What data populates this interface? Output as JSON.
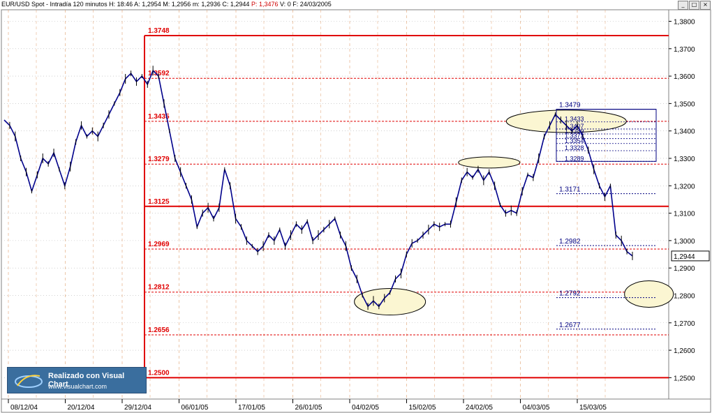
{
  "header": {
    "symbol": "EUR/USD Spot",
    "interval": "Intradía 120 minutos",
    "fields": [
      {
        "k": "H:",
        "v": "18:46"
      },
      {
        "k": "A:",
        "v": "1,2954"
      },
      {
        "k": "M:",
        "v": "1,2956"
      },
      {
        "k": "m:",
        "v": "1,2936"
      },
      {
        "k": "C:",
        "v": "1,2944"
      },
      {
        "k": "P:",
        "v": "1,3476",
        "highlight": true
      },
      {
        "k": "V:",
        "v": "0"
      },
      {
        "k": "F:",
        "v": "24/03/2005"
      }
    ]
  },
  "window_buttons": [
    "_",
    "□",
    "×"
  ],
  "watermark": {
    "title": "Realizado con Visual Chart",
    "url": "www.visualchart.com"
  },
  "colors": {
    "price": "#00008b",
    "fib_red": "#e00000",
    "fib_blue": "#000080",
    "grid": "#b4b4b4",
    "ellipse_fill": "#fbf6d2"
  },
  "chart_data": {
    "type": "line",
    "title": "",
    "ylim": [
      1.2422,
      1.3842
    ],
    "y_ticks": [
      {
        "v": 1.38,
        "label": "1,3800"
      },
      {
        "v": 1.37,
        "label": "1,3700"
      },
      {
        "v": 1.36,
        "label": "1,3600"
      },
      {
        "v": 1.35,
        "label": "1,3500"
      },
      {
        "v": 1.34,
        "label": "1,3400"
      },
      {
        "v": 1.33,
        "label": "1,3300"
      },
      {
        "v": 1.32,
        "label": "1,3200"
      },
      {
        "v": 1.31,
        "label": "1,3100"
      },
      {
        "v": 1.3,
        "label": "1,3000"
      },
      {
        "v": 1.29,
        "label": "1,2900"
      },
      {
        "v": 1.28,
        "label": "1,2800"
      },
      {
        "v": 1.27,
        "label": "1,2700"
      },
      {
        "v": 1.26,
        "label": "1,2600"
      },
      {
        "v": 1.25,
        "label": "1,2500"
      }
    ],
    "x_ticks": [
      "08/12/04",
      "20/12/04",
      "29/12/04",
      "06/01/05",
      "17/01/05",
      "26/01/05",
      "04/02/05",
      "15/02/05",
      "24/02/05",
      "04/03/05",
      "15/03/05"
    ],
    "last_price": {
      "v": 1.2944,
      "label": "1,2944"
    },
    "series": [
      {
        "values": [
          1.344,
          1.342,
          1.338,
          1.33,
          1.325,
          1.318,
          1.324,
          1.33,
          1.328,
          1.332,
          1.326,
          1.32,
          1.327,
          1.336,
          1.342,
          1.338,
          1.34,
          1.338,
          1.342,
          1.346,
          1.35,
          1.354,
          1.359,
          1.361,
          1.358,
          1.36,
          1.357,
          1.362,
          1.36,
          1.35,
          1.34,
          1.33,
          1.325,
          1.32,
          1.315,
          1.305,
          1.31,
          1.312,
          1.308,
          1.312,
          1.326,
          1.32,
          1.308,
          1.305,
          1.3,
          1.298,
          1.296,
          1.298,
          1.302,
          1.3,
          1.304,
          1.298,
          1.302,
          1.306,
          1.304,
          1.307,
          1.3,
          1.302,
          1.304,
          1.306,
          1.308,
          1.302,
          1.298,
          1.29,
          1.286,
          1.28,
          1.276,
          1.278,
          1.276,
          1.279,
          1.281,
          1.286,
          1.288,
          1.295,
          1.299,
          1.3,
          1.302,
          1.304,
          1.306,
          1.305,
          1.306,
          1.306,
          1.314,
          1.322,
          1.325,
          1.323,
          1.326,
          1.322,
          1.325,
          1.32,
          1.313,
          1.31,
          1.311,
          1.31,
          1.318,
          1.324,
          1.323,
          1.33,
          1.338,
          1.342,
          1.346,
          1.344,
          1.342,
          1.34,
          1.342,
          1.338,
          1.333,
          1.326,
          1.32,
          1.316,
          1.32,
          1.302,
          1.3,
          1.296,
          1.2944
        ]
      }
    ],
    "fibonacci_levels": [
      {
        "label": "1.3748",
        "v": 1.3748,
        "style": "solid"
      },
      {
        "label": "1.3592",
        "v": 1.3592,
        "style": "dashed"
      },
      {
        "label": "1.3435",
        "v": 1.3435,
        "style": "dashed"
      },
      {
        "label": "1.3279",
        "v": 1.3279,
        "style": "dashed"
      },
      {
        "label": "1.3125",
        "v": 1.3125,
        "style": "solid"
      },
      {
        "label": "1.2969",
        "v": 1.2969,
        "style": "dashed"
      },
      {
        "label": "1.2812",
        "v": 1.2812,
        "style": "dashed"
      },
      {
        "label": "1.2656",
        "v": 1.2656,
        "style": "dashed"
      },
      {
        "label": "1.2500",
        "v": 1.25,
        "style": "solid"
      }
    ],
    "projection_levels_large": [
      {
        "label": "1.3479",
        "v": 1.3479
      },
      {
        "label": "1.3171",
        "v": 1.3171
      },
      {
        "label": "1.2982",
        "v": 1.2982
      },
      {
        "label": "1.2792",
        "v": 1.2792
      },
      {
        "label": "1.2677",
        "v": 1.2677
      }
    ],
    "projection_levels_small": [
      {
        "label": "1.3433",
        "v": 1.3433
      },
      {
        "label": "1.3407",
        "v": 1.3407
      },
      {
        "label": "1.3389",
        "v": 1.3389
      },
      {
        "label": "1.3372",
        "v": 1.3372
      },
      {
        "label": "1.3354",
        "v": 1.3354
      },
      {
        "label": "1.3328",
        "v": 1.3328
      },
      {
        "label": "1.3289",
        "v": 1.3289
      }
    ],
    "ellipses": [
      {
        "cx_index": 70,
        "cy": 1.2777
      },
      {
        "cx_index": 88,
        "cy": 1.3285
      },
      {
        "cx_index": 102,
        "cy": 1.3435
      },
      {
        "cx_index": 117,
        "cy": 1.2805
      }
    ]
  }
}
